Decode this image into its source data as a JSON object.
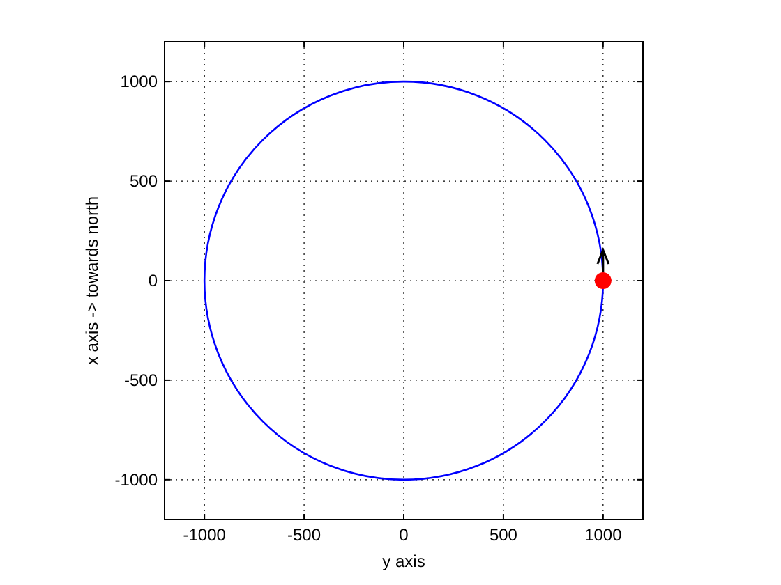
{
  "chart_data": {
    "type": "scatter",
    "xlabel": "y axis",
    "ylabel": "x axis -> towards north",
    "xlim": [
      -1200,
      1200
    ],
    "ylim": [
      -1200,
      1200
    ],
    "xticks": [
      -1000,
      -500,
      0,
      500,
      1000
    ],
    "yticks": [
      -1000,
      -500,
      0,
      500,
      1000
    ],
    "grid": true,
    "legend": false,
    "series": [
      {
        "color": "#ff0000",
        "marker": "circle",
        "x": [
          1000
        ],
        "values": [
          0
        ]
      }
    ]
  }
}
